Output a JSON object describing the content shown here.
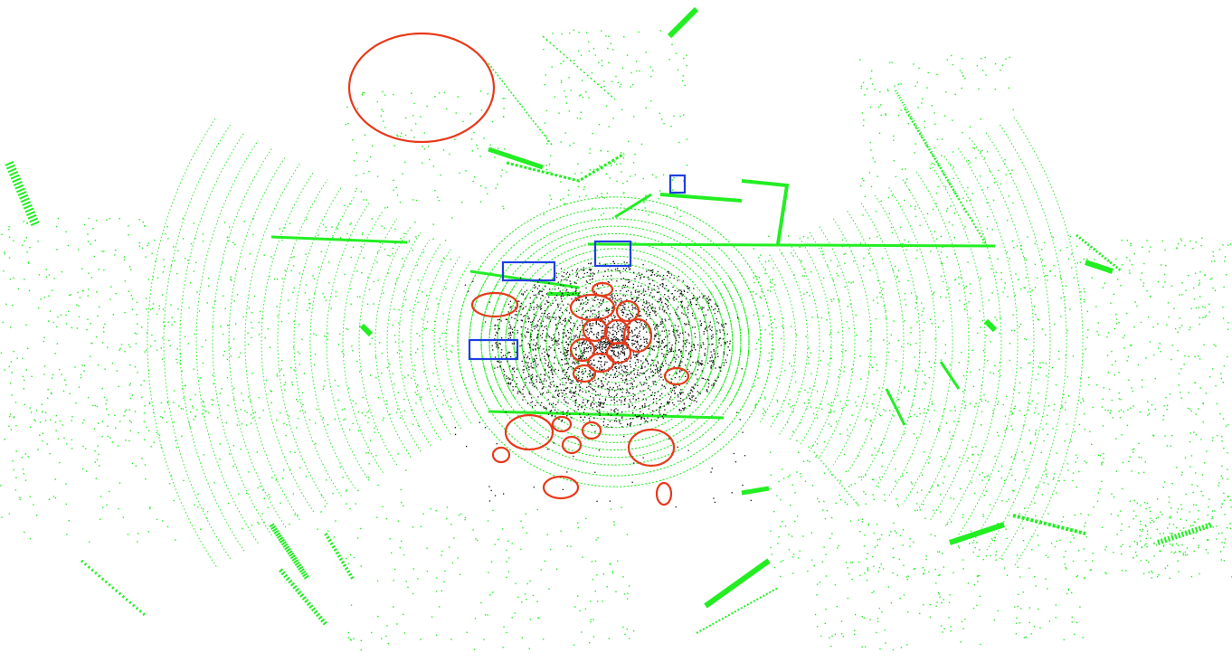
{
  "scene": {
    "type": "lidar-point-cloud-birdseye",
    "background_color": "#ffffff",
    "static_points_color": "#22ee22",
    "noise_points_color": "#111111",
    "ellipse_color": "#e8391a",
    "box_color": "#1f3fe0",
    "ellipse_marker_count": 23,
    "box_marker_count": 4
  }
}
